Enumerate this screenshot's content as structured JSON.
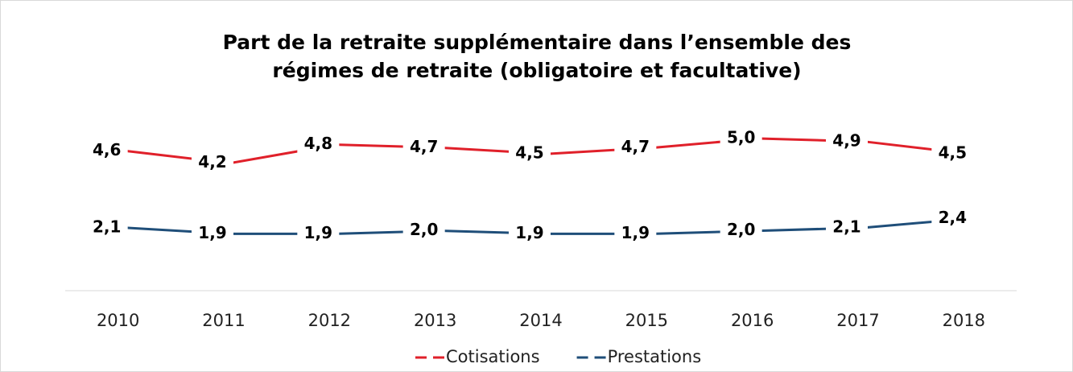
{
  "chart_data": {
    "type": "line",
    "title": "Part de la retraite supplémentaire dans l’ensemble des régimes de retraite (obligatoire et facultative)",
    "categories": [
      "2010",
      "2011",
      "2012",
      "2013",
      "2014",
      "2015",
      "2016",
      "2017",
      "2018"
    ],
    "series": [
      {
        "name": "Cotisations",
        "color": "#e0202a",
        "values": [
          4.6,
          4.2,
          4.8,
          4.7,
          4.5,
          4.7,
          5.0,
          4.9,
          4.5
        ],
        "value_labels": [
          "4,6",
          "4,2",
          "4,8",
          "4,7",
          "4,5",
          "4,7",
          "5,0",
          "4,9",
          "4,5"
        ]
      },
      {
        "name": "Prestations",
        "color": "#1f4e79",
        "values": [
          2.1,
          1.9,
          1.9,
          2.0,
          1.9,
          1.9,
          2.0,
          2.1,
          2.4
        ],
        "value_labels": [
          "2,1",
          "1,9",
          "1,9",
          "2,0",
          "1,9",
          "1,9",
          "2,0",
          "2,1",
          "2,4"
        ]
      }
    ],
    "ylim": [
      0,
      5
    ],
    "legend": "bottom"
  }
}
